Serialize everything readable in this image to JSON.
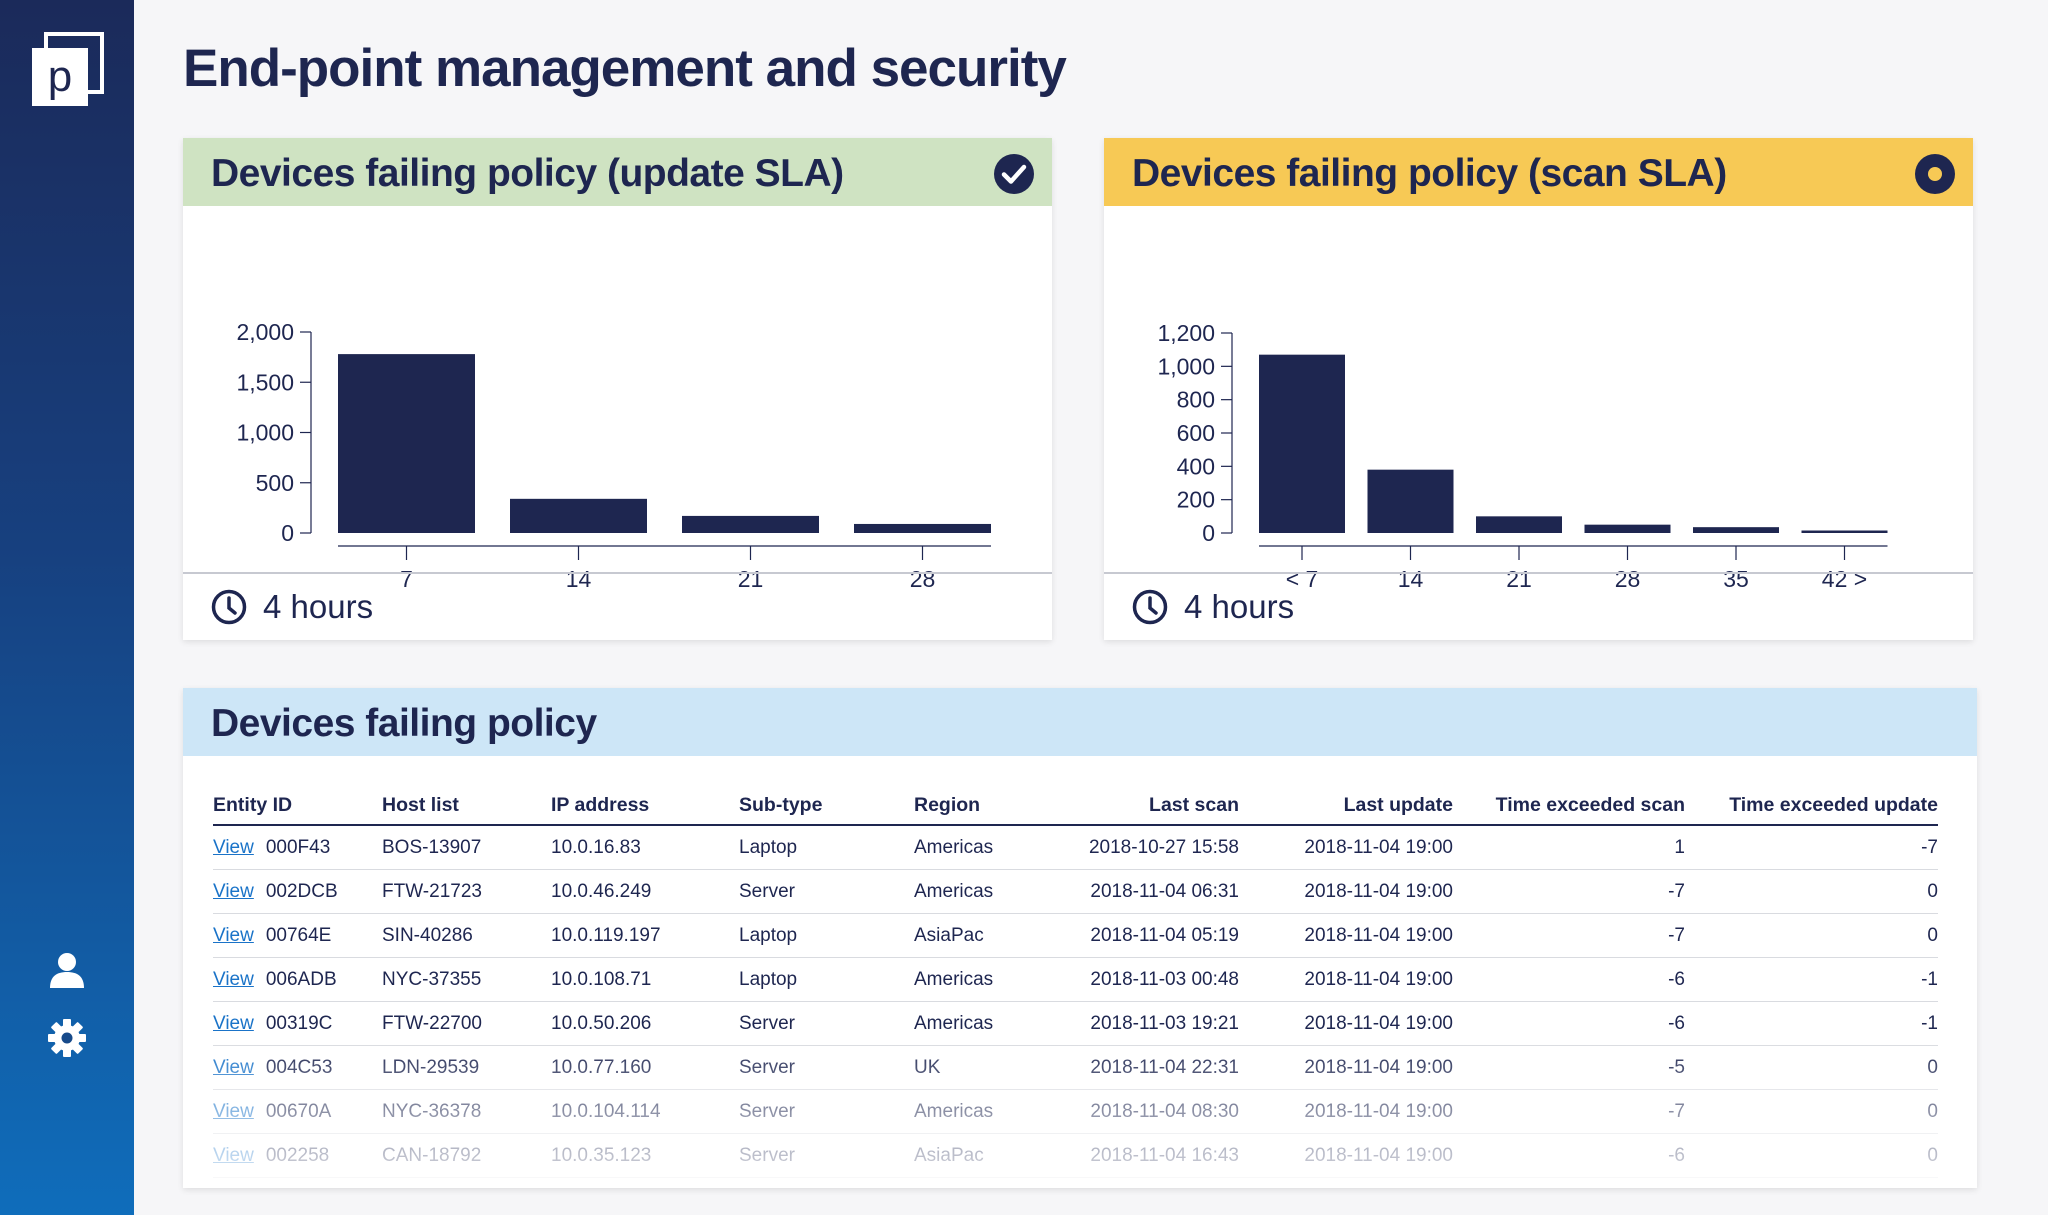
{
  "page": {
    "title": "End-point management and security"
  },
  "colors": {
    "navy": "#1e2650",
    "update_header": "#cfe3c2",
    "scan_header": "#f7c955",
    "table_header": "#cde6f7",
    "link": "#1a73c8"
  },
  "sidebar": {
    "logo_letter": "p",
    "icons": [
      "user-icon",
      "gear-icon"
    ]
  },
  "update_card": {
    "title": "Devices failing policy (update SLA)",
    "status_icon": "check-circle-icon",
    "footer_text": "4 hours"
  },
  "scan_card": {
    "title": "Devices failing policy (scan SLA)",
    "status_icon": "record-circle-icon",
    "footer_text": "4 hours"
  },
  "table_card": {
    "title": "Devices failing policy",
    "view_label": "View",
    "columns": [
      "Entity ID",
      "Host list",
      "IP address",
      "Sub-type",
      "Region",
      "Last scan",
      "Last update",
      "Time exceeded scan",
      "Time exceeded update"
    ],
    "rows": [
      [
        "000F43",
        "BOS-13907",
        "10.0.16.83",
        "Laptop",
        "Americas",
        "2018-10-27 15:58",
        "2018-11-04 19:00",
        "1",
        "-7"
      ],
      [
        "002DCB",
        "FTW-21723",
        "10.0.46.249",
        "Server",
        "Americas",
        "2018-11-04 06:31",
        "2018-11-04 19:00",
        "-7",
        "0"
      ],
      [
        "00764E",
        "SIN-40286",
        "10.0.119.197",
        "Laptop",
        "AsiaPac",
        "2018-11-04 05:19",
        "2018-11-04 19:00",
        "-7",
        "0"
      ],
      [
        "006ADB",
        "NYC-37355",
        "10.0.108.71",
        "Laptop",
        "Americas",
        "2018-11-03 00:48",
        "2018-11-04 19:00",
        "-6",
        "-1"
      ],
      [
        "00319C",
        "FTW-22700",
        "10.0.50.206",
        "Server",
        "Americas",
        "2018-11-03 19:21",
        "2018-11-04 19:00",
        "-6",
        "-1"
      ],
      [
        "004C53",
        "LDN-29539",
        "10.0.77.160",
        "Server",
        "UK",
        "2018-11-04 22:31",
        "2018-11-04 19:00",
        "-5",
        "0"
      ],
      [
        "00670A",
        "NYC-36378",
        "10.0.104.114",
        "Server",
        "Americas",
        "2018-11-04 08:30",
        "2018-11-04 19:00",
        "-7",
        "0"
      ],
      [
        "002258",
        "CAN-18792",
        "10.0.35.123",
        "Server",
        "AsiaPac",
        "2018-11-04 16:43",
        "2018-11-04 19:00",
        "-6",
        "0"
      ]
    ]
  },
  "chart_data": [
    {
      "type": "bar",
      "categories": [
        "7",
        "14",
        "21",
        "28"
      ],
      "values": [
        1780,
        340,
        170,
        90
      ],
      "yticks": [
        0,
        500,
        1000,
        1500,
        2000
      ],
      "ytick_labels": [
        "0",
        "500",
        "1,000",
        "1,500",
        "2,000"
      ],
      "ylim": [
        0,
        2000
      ],
      "title": "",
      "xlabel": "",
      "ylabel": ""
    },
    {
      "type": "bar",
      "categories": [
        "< 7",
        "14",
        "21",
        "28",
        "35",
        "42 >"
      ],
      "values": [
        1070,
        380,
        100,
        50,
        35,
        15
      ],
      "yticks": [
        0,
        200,
        400,
        600,
        800,
        1000,
        1200
      ],
      "ytick_labels": [
        "0",
        "200",
        "400",
        "600",
        "800",
        "1,000",
        "1,200"
      ],
      "ylim": [
        0,
        1200
      ],
      "title": "",
      "xlabel": "",
      "ylabel": ""
    }
  ]
}
